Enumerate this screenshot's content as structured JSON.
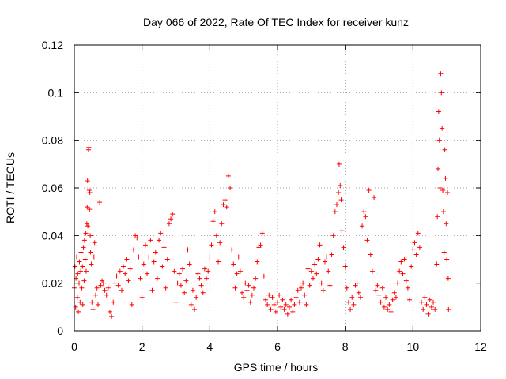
{
  "chart_data": {
    "type": "scatter",
    "title": "Day 066 of 2022, Rate Of TEC Index for receiver kunz",
    "xlabel": "GPS time / hours",
    "ylabel": "ROTI / TECUs",
    "xlim": [
      0,
      12
    ],
    "ylim": [
      0,
      0.12
    ],
    "x_ticks": [
      "0",
      "2",
      "4",
      "6",
      "8",
      "10",
      "12"
    ],
    "y_ticks": [
      "0",
      "0.02",
      "0.04",
      "0.06",
      "0.08",
      "0.1",
      "0.12"
    ],
    "grid": true,
    "marker": "+",
    "color": "#ff0000",
    "points": [
      [
        0.0,
        0.018
      ],
      [
        0.02,
        0.027
      ],
      [
        0.04,
        0.01
      ],
      [
        0.05,
        0.022
      ],
      [
        0.07,
        0.031
      ],
      [
        0.09,
        0.014
      ],
      [
        0.1,
        0.024
      ],
      [
        0.12,
        0.008
      ],
      [
        0.14,
        0.02
      ],
      [
        0.15,
        0.029
      ],
      [
        0.17,
        0.012
      ],
      [
        0.19,
        0.025
      ],
      [
        0.2,
        0.033
      ],
      [
        0.22,
        0.018
      ],
      [
        0.24,
        0.027
      ],
      [
        0.25,
        0.011
      ],
      [
        0.27,
        0.035
      ],
      [
        0.29,
        0.021
      ],
      [
        0.3,
        0.038
      ],
      [
        0.32,
        0.03
      ],
      [
        0.34,
        0.041
      ],
      [
        0.35,
        0.025
      ],
      [
        0.37,
        0.045
      ],
      [
        0.38,
        0.052
      ],
      [
        0.39,
        0.063
      ],
      [
        0.4,
        0.044
      ],
      [
        0.42,
        0.076
      ],
      [
        0.43,
        0.077
      ],
      [
        0.44,
        0.059
      ],
      [
        0.45,
        0.051
      ],
      [
        0.46,
        0.058
      ],
      [
        0.47,
        0.04
      ],
      [
        0.48,
        0.033
      ],
      [
        0.5,
        0.028
      ],
      [
        0.52,
        0.012
      ],
      [
        0.55,
        0.009
      ],
      [
        0.58,
        0.031
      ],
      [
        0.6,
        0.037
      ],
      [
        0.63,
        0.015
      ],
      [
        0.67,
        0.018
      ],
      [
        0.7,
        0.011
      ],
      [
        0.75,
        0.054
      ],
      [
        0.78,
        0.019
      ],
      [
        0.82,
        0.021
      ],
      [
        0.86,
        0.02
      ],
      [
        0.9,
        0.017
      ],
      [
        0.95,
        0.015
      ],
      [
        1.0,
        0.018
      ],
      [
        1.05,
        0.008
      ],
      [
        1.1,
        0.006
      ],
      [
        1.15,
        0.012
      ],
      [
        1.2,
        0.02
      ],
      [
        1.25,
        0.023
      ],
      [
        1.3,
        0.019
      ],
      [
        1.35,
        0.025
      ],
      [
        1.4,
        0.017
      ],
      [
        1.45,
        0.027
      ],
      [
        1.5,
        0.024
      ],
      [
        1.55,
        0.03
      ],
      [
        1.6,
        0.021
      ],
      [
        1.65,
        0.026
      ],
      [
        1.7,
        0.011
      ],
      [
        1.75,
        0.034
      ],
      [
        1.8,
        0.04
      ],
      [
        1.85,
        0.039
      ],
      [
        1.9,
        0.031
      ],
      [
        1.95,
        0.022
      ],
      [
        2.0,
        0.014
      ],
      [
        2.05,
        0.028
      ],
      [
        2.1,
        0.036
      ],
      [
        2.15,
        0.024
      ],
      [
        2.2,
        0.031
      ],
      [
        2.25,
        0.038
      ],
      [
        2.3,
        0.017
      ],
      [
        2.35,
        0.029
      ],
      [
        2.4,
        0.033
      ],
      [
        2.45,
        0.022
      ],
      [
        2.5,
        0.038
      ],
      [
        2.55,
        0.041
      ],
      [
        2.6,
        0.027
      ],
      [
        2.65,
        0.035
      ],
      [
        2.7,
        0.018
      ],
      [
        2.75,
        0.03
      ],
      [
        2.8,
        0.045
      ],
      [
        2.85,
        0.047
      ],
      [
        2.9,
        0.049
      ],
      [
        2.95,
        0.025
      ],
      [
        3.0,
        0.012
      ],
      [
        3.05,
        0.02
      ],
      [
        3.1,
        0.024
      ],
      [
        3.15,
        0.019
      ],
      [
        3.2,
        0.026
      ],
      [
        3.25,
        0.016
      ],
      [
        3.3,
        0.021
      ],
      [
        3.35,
        0.034
      ],
      [
        3.4,
        0.028
      ],
      [
        3.45,
        0.011
      ],
      [
        3.5,
        0.017
      ],
      [
        3.55,
        0.009
      ],
      [
        3.6,
        0.014
      ],
      [
        3.65,
        0.024
      ],
      [
        3.7,
        0.022
      ],
      [
        3.75,
        0.019
      ],
      [
        3.8,
        0.016
      ],
      [
        3.85,
        0.026
      ],
      [
        3.9,
        0.022
      ],
      [
        3.95,
        0.025
      ],
      [
        4.0,
        0.031
      ],
      [
        4.05,
        0.036
      ],
      [
        4.1,
        0.046
      ],
      [
        4.15,
        0.05
      ],
      [
        4.2,
        0.04
      ],
      [
        4.25,
        0.029
      ],
      [
        4.3,
        0.037
      ],
      [
        4.35,
        0.045
      ],
      [
        4.4,
        0.053
      ],
      [
        4.45,
        0.055
      ],
      [
        4.5,
        0.052
      ],
      [
        4.55,
        0.065
      ],
      [
        4.6,
        0.06
      ],
      [
        4.65,
        0.034
      ],
      [
        4.7,
        0.028
      ],
      [
        4.75,
        0.018
      ],
      [
        4.8,
        0.024
      ],
      [
        4.85,
        0.031
      ],
      [
        4.9,
        0.025
      ],
      [
        4.95,
        0.016
      ],
      [
        5.0,
        0.014
      ],
      [
        5.05,
        0.02
      ],
      [
        5.1,
        0.017
      ],
      [
        5.15,
        0.019
      ],
      [
        5.2,
        0.012
      ],
      [
        5.25,
        0.015
      ],
      [
        5.3,
        0.018
      ],
      [
        5.35,
        0.022
      ],
      [
        5.4,
        0.029
      ],
      [
        5.45,
        0.035
      ],
      [
        5.5,
        0.036
      ],
      [
        5.55,
        0.041
      ],
      [
        5.6,
        0.023
      ],
      [
        5.65,
        0.013
      ],
      [
        5.7,
        0.011
      ],
      [
        5.75,
        0.015
      ],
      [
        5.8,
        0.009
      ],
      [
        5.85,
        0.014
      ],
      [
        5.9,
        0.011
      ],
      [
        5.95,
        0.008
      ],
      [
        6.0,
        0.012
      ],
      [
        6.05,
        0.015
      ],
      [
        6.1,
        0.01
      ],
      [
        6.15,
        0.013
      ],
      [
        6.2,
        0.009
      ],
      [
        6.25,
        0.011
      ],
      [
        6.3,
        0.007
      ],
      [
        6.35,
        0.01
      ],
      [
        6.4,
        0.013
      ],
      [
        6.45,
        0.008
      ],
      [
        6.5,
        0.011
      ],
      [
        6.55,
        0.014
      ],
      [
        6.6,
        0.017
      ],
      [
        6.65,
        0.012
      ],
      [
        6.7,
        0.018
      ],
      [
        6.75,
        0.02
      ],
      [
        6.8,
        0.015
      ],
      [
        6.85,
        0.011
      ],
      [
        6.9,
        0.026
      ],
      [
        6.95,
        0.019
      ],
      [
        7.0,
        0.025
      ],
      [
        7.05,
        0.022
      ],
      [
        7.1,
        0.028
      ],
      [
        7.15,
        0.024
      ],
      [
        7.2,
        0.03
      ],
      [
        7.25,
        0.036
      ],
      [
        7.3,
        0.02
      ],
      [
        7.35,
        0.017
      ],
      [
        7.4,
        0.029
      ],
      [
        7.45,
        0.031
      ],
      [
        7.5,
        0.025
      ],
      [
        7.55,
        0.019
      ],
      [
        7.6,
        0.032
      ],
      [
        7.65,
        0.04
      ],
      [
        7.7,
        0.05
      ],
      [
        7.75,
        0.053
      ],
      [
        7.8,
        0.058
      ],
      [
        7.82,
        0.07
      ],
      [
        7.85,
        0.061
      ],
      [
        7.88,
        0.055
      ],
      [
        7.9,
        0.042
      ],
      [
        7.95,
        0.035
      ],
      [
        8.0,
        0.027
      ],
      [
        8.05,
        0.018
      ],
      [
        8.1,
        0.012
      ],
      [
        8.15,
        0.009
      ],
      [
        8.2,
        0.014
      ],
      [
        8.25,
        0.011
      ],
      [
        8.3,
        0.019
      ],
      [
        8.35,
        0.02
      ],
      [
        8.4,
        0.016
      ],
      [
        8.45,
        0.014
      ],
      [
        8.5,
        0.044
      ],
      [
        8.55,
        0.05
      ],
      [
        8.6,
        0.048
      ],
      [
        8.65,
        0.038
      ],
      [
        8.7,
        0.059
      ],
      [
        8.75,
        0.032
      ],
      [
        8.8,
        0.025
      ],
      [
        8.85,
        0.056
      ],
      [
        8.9,
        0.017
      ],
      [
        8.95,
        0.019
      ],
      [
        9.0,
        0.015
      ],
      [
        9.05,
        0.012
      ],
      [
        9.1,
        0.018
      ],
      [
        9.15,
        0.01
      ],
      [
        9.2,
        0.014
      ],
      [
        9.25,
        0.009
      ],
      [
        9.3,
        0.011
      ],
      [
        9.35,
        0.008
      ],
      [
        9.4,
        0.013
      ],
      [
        9.45,
        0.016
      ],
      [
        9.5,
        0.014
      ],
      [
        9.55,
        0.02
      ],
      [
        9.6,
        0.025
      ],
      [
        9.65,
        0.029
      ],
      [
        9.7,
        0.024
      ],
      [
        9.75,
        0.03
      ],
      [
        9.8,
        0.021
      ],
      [
        9.85,
        0.018
      ],
      [
        9.9,
        0.013
      ],
      [
        9.95,
        0.027
      ],
      [
        10.0,
        0.034
      ],
      [
        10.05,
        0.037
      ],
      [
        10.1,
        0.032
      ],
      [
        10.15,
        0.041
      ],
      [
        10.2,
        0.035
      ],
      [
        10.25,
        0.012
      ],
      [
        10.3,
        0.009
      ],
      [
        10.35,
        0.014
      ],
      [
        10.4,
        0.011
      ],
      [
        10.45,
        0.007
      ],
      [
        10.5,
        0.013
      ],
      [
        10.55,
        0.01
      ],
      [
        10.6,
        0.012
      ],
      [
        10.65,
        0.009
      ],
      [
        10.7,
        0.028
      ],
      [
        10.72,
        0.048
      ],
      [
        10.74,
        0.068
      ],
      [
        10.76,
        0.092
      ],
      [
        10.78,
        0.08
      ],
      [
        10.8,
        0.06
      ],
      [
        10.82,
        0.108
      ],
      [
        10.84,
        0.1
      ],
      [
        10.86,
        0.085
      ],
      [
        10.88,
        0.059
      ],
      [
        10.9,
        0.05
      ],
      [
        10.92,
        0.033
      ],
      [
        10.94,
        0.076
      ],
      [
        10.96,
        0.064
      ],
      [
        10.98,
        0.045
      ],
      [
        11.0,
        0.03
      ],
      [
        11.02,
        0.058
      ],
      [
        11.04,
        0.022
      ],
      [
        11.05,
        0.009
      ]
    ]
  }
}
